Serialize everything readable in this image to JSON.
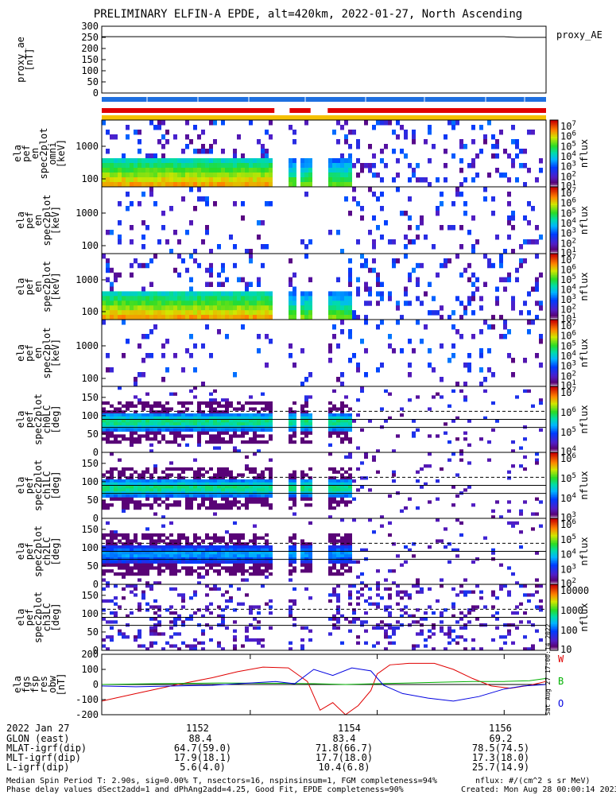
{
  "title": "PRELIMINARY ELFIN-A EPDE, alt=420km, 2022-01-27, North Ascending",
  "chart_data": {
    "type": "heatmap",
    "x_axis": {
      "ticks": [
        1152,
        1154,
        1156
      ],
      "xlim": [
        1149.66,
        1156.66
      ]
    },
    "panels": [
      {
        "id": "proxy_ae",
        "type": "line",
        "ylabel": [
          "proxy_ae",
          "[nT]"
        ],
        "ylim": [
          0,
          300
        ],
        "yticks": [
          "0",
          "50",
          "100",
          "150",
          "200",
          "250",
          "300"
        ],
        "legend": [
          "proxy_AE"
        ],
        "series": [
          {
            "name": "proxy_AE",
            "x": [
              1149.66,
              1156.0,
              1156.2,
              1156.66
            ],
            "y": [
              253,
              253,
              250,
              250
            ]
          }
        ]
      },
      {
        "id": "ch_energy_1",
        "type": "heatmap",
        "ylabel": [
          "ela",
          "pef",
          "en",
          "spec2plot",
          "omni",
          "[keV]"
        ],
        "yticks": [
          "100",
          "1000"
        ],
        "cbar": {
          "ticks": [
            "10^7",
            "10^6",
            "10^5",
            "10^4",
            "10^3",
            "10^2",
            "10^1"
          ],
          "label": "nflux"
        }
      },
      {
        "id": "ch_energy_2",
        "type": "heatmap",
        "ylabel": [
          "ela",
          "pef",
          "en",
          "spec2plot",
          "[keV]"
        ],
        "yticks": [
          "100",
          "1000"
        ],
        "cbar": {
          "ticks": [
            "10^7",
            "10^6",
            "10^5",
            "10^4",
            "10^3",
            "10^2",
            "10^1"
          ],
          "label": "nflux"
        }
      },
      {
        "id": "ch_energy_3",
        "type": "heatmap",
        "ylabel": [
          "ela",
          "pef",
          "en",
          "spec2plot",
          "[keV]"
        ],
        "yticks": [
          "100",
          "1000"
        ],
        "cbar": {
          "ticks": [
            "10^7",
            "10^6",
            "10^5",
            "10^4",
            "10^3",
            "10^2",
            "10^1"
          ],
          "label": "nflux"
        }
      },
      {
        "id": "ch_energy_4",
        "type": "heatmap",
        "ylabel": [
          "ela",
          "pef",
          "en",
          "spec2plot",
          "[keV]"
        ],
        "yticks": [
          "100",
          "1000"
        ],
        "cbar": {
          "ticks": [
            "10^7",
            "10^6",
            "10^5",
            "10^4",
            "10^3",
            "10^2",
            "10^1"
          ],
          "label": "nflux"
        }
      },
      {
        "id": "ch0LC",
        "type": "heatmap",
        "ylabel": [
          "ela",
          "pef",
          "spec2plot",
          "ch0LC",
          "[deg]"
        ],
        "yticks": [
          "0",
          "50",
          "100",
          "150"
        ],
        "cbar": {
          "ticks": [
            "10^7",
            "10^6",
            "10^5",
            "10^4"
          ],
          "label": "nflux"
        }
      },
      {
        "id": "ch1LC",
        "type": "heatmap",
        "ylabel": [
          "ela",
          "pef",
          "spec2plot",
          "ch1LC",
          "[deg]"
        ],
        "yticks": [
          "0",
          "50",
          "100",
          "150"
        ],
        "cbar": {
          "ticks": [
            "10^6",
            "10^5",
            "10^4",
            "10^3"
          ],
          "label": "nflux"
        }
      },
      {
        "id": "ch2LC",
        "type": "heatmap",
        "ylabel": [
          "ela",
          "pef",
          "spec2plot",
          "ch2LC",
          "[deg]"
        ],
        "yticks": [
          "0",
          "50",
          "100",
          "150"
        ],
        "cbar": {
          "ticks": [
            "10^6",
            "10^5",
            "10^4",
            "10^3",
            "10^2"
          ],
          "label": "nflux"
        }
      },
      {
        "id": "ch3LC",
        "type": "heatmap",
        "ylabel": [
          "ela",
          "pef",
          "spec2plot",
          "ch3LC",
          "[deg]"
        ],
        "yticks": [
          "0",
          "50",
          "100",
          "150"
        ],
        "cbar": {
          "ticks": [
            "10000",
            "1000",
            "100",
            "10"
          ],
          "label": "nflux"
        }
      },
      {
        "id": "fgs",
        "type": "line",
        "ylabel": [
          "ela",
          "fgs",
          "fsp",
          "res",
          "obw",
          "[nT]"
        ],
        "ylim": [
          -200,
          200
        ],
        "yticks": [
          "-200",
          "-100",
          "0",
          "100",
          "200"
        ],
        "legend": [
          "W",
          "B",
          "O"
        ],
        "series": [
          {
            "name": "W",
            "x": [
              1149.66,
              1150.2,
              1150.8,
              1151.4,
              1151.8,
              1152.2,
              1152.6,
              1152.9,
              1153.1,
              1153.3,
              1153.5,
              1153.7,
              1153.9,
              1154.0,
              1154.2,
              1154.5,
              1154.9,
              1155.2,
              1155.5,
              1155.8,
              1156.1,
              1156.4,
              1156.66
            ],
            "y": [
              -110,
              -60,
              -5,
              45,
              85,
              115,
              110,
              20,
              -170,
              -120,
              -200,
              -140,
              -40,
              70,
              130,
              140,
              140,
              100,
              40,
              -10,
              -25,
              -5,
              20
            ]
          },
          {
            "name": "B",
            "x": [
              1149.66,
              1150.5,
              1151.5,
              1152.5,
              1153.0,
              1153.5,
              1154.0,
              1154.5,
              1155.0,
              1155.5,
              1156.0,
              1156.4,
              1156.66
            ],
            "y": [
              0,
              5,
              10,
              8,
              5,
              0,
              5,
              10,
              15,
              20,
              20,
              25,
              40
            ]
          },
          {
            "name": "O",
            "x": [
              1149.66,
              1150.2,
              1150.8,
              1151.4,
              1152.0,
              1152.4,
              1152.7,
              1153.0,
              1153.3,
              1153.6,
              1153.9,
              1154.1,
              1154.4,
              1154.8,
              1155.2,
              1155.6,
              1156.0,
              1156.3,
              1156.66
            ],
            "y": [
              -10,
              -15,
              -10,
              -5,
              10,
              20,
              5,
              100,
              60,
              110,
              90,
              -5,
              -60,
              -90,
              -110,
              -80,
              -30,
              -10,
              0
            ]
          }
        ]
      }
    ],
    "status_bars": [
      {
        "color": "#1e6fe0",
        "segments": [
          [
            1149.66,
            1156.66
          ]
        ]
      },
      {
        "color": "#e00000",
        "segments": [
          [
            1149.66,
            1152.38
          ],
          [
            1152.62,
            1152.95
          ],
          [
            1153.22,
            1156.66
          ]
        ]
      },
      {
        "color": "#f5c000",
        "segments": [
          [
            1149.66,
            1156.66
          ]
        ]
      }
    ]
  },
  "orbit": {
    "date": "2022 Jan 27",
    "ticks": [
      "1152",
      "1154",
      "1156"
    ],
    "rows": [
      {
        "label": "GLON (east)",
        "values": [
          "88.4",
          "83.4",
          "69.2"
        ]
      },
      {
        "label": "MLAT-igrf(dip)",
        "values": [
          "64.7(59.0)",
          "71.8(66.7)",
          "78.5(74.5)"
        ]
      },
      {
        "label": "MLT-igrf(dip)",
        "values": [
          "17.9(18.1)",
          "17.7(18.0)",
          "17.3(18.0)"
        ]
      },
      {
        "label": "L-igrf(dip)",
        "values": [
          "5.6(4.0)",
          "10.4(6.8)",
          "25.7(14.9)"
        ]
      }
    ]
  },
  "footer": {
    "line1_left": "Median Spin Period T: 2.90s, sig=0.00% T, nsectors=16, nspinsinsum=1, FGM completeness=94%",
    "line2_left": "Phase delay values dSect2add=1 and dPhAng2add=4.25, Good Fit, EPDE completeness=90%",
    "line1_right": "nflux: #/(cm^2 s sr MeV)",
    "line2_right": "Created: Mon Aug 28 00:00:14 2023",
    "sidebar": "Sat Aug 27 17:00:14 2022"
  }
}
